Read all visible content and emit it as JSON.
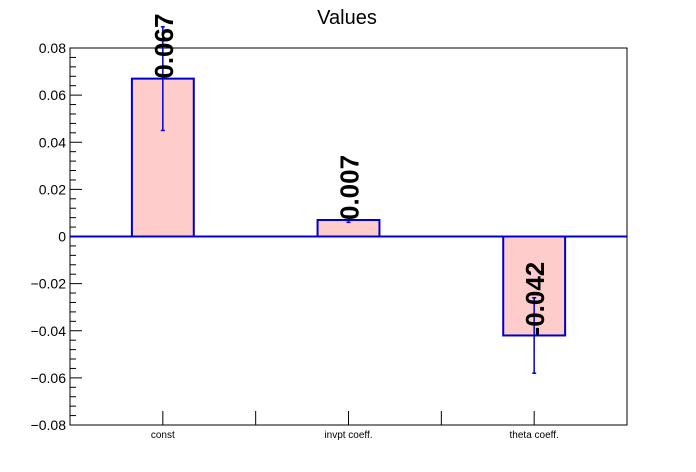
{
  "chart_data": {
    "type": "bar",
    "title": "Values",
    "categories": [
      "const",
      "invpt coeff.",
      "theta coeff."
    ],
    "values": [
      0.067,
      0.007,
      -0.042
    ],
    "errors": [
      0.022,
      0.001,
      0.016
    ],
    "data_labels": [
      "0.067",
      "0.007",
      "-0.042"
    ],
    "ylim": [
      -0.08,
      0.08
    ],
    "yticks": [
      -0.08,
      -0.06,
      -0.04,
      -0.02,
      0,
      0.02,
      0.04,
      0.06,
      0.08
    ],
    "ytick_labels": [
      "−0.08",
      "−0.06",
      "−0.04",
      "−0.02",
      "0",
      "0.02",
      "0.04",
      "0.06",
      "0.08"
    ],
    "grid": false,
    "bar_fill": "#ffcccc",
    "bar_edge": "#0000cc",
    "baseline_color": "#0000cc"
  }
}
